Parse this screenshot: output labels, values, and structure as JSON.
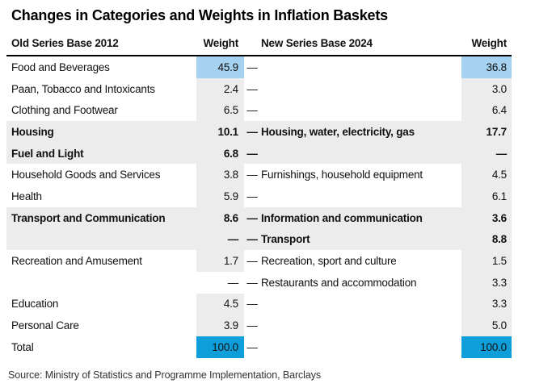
{
  "title": "Changes in Categories and Weights in Inflation Baskets",
  "header": {
    "old_series": "Old Series Base 2012",
    "old_weight": "Weight",
    "new_series": "New Series Base 2024",
    "new_weight": "Weight"
  },
  "colors": {
    "cell_gray": "#ececec",
    "row_gray": "#ececec",
    "highlight_light_blue": "#a5d2f0",
    "highlight_strong_blue": "#0e9fdb",
    "rule_black": "#000000"
  },
  "separator_glyph": "—",
  "dash_glyph": "—",
  "source": "Source: Ministry of Statistics and Programme Implementation, Barclays",
  "chart_data": {
    "type": "table",
    "title": "Changes in Categories and Weights in Inflation Baskets",
    "columns": [
      "Old Series Base 2012",
      "Weight",
      "New Series Base 2024",
      "Weight"
    ],
    "rows": [
      {
        "old": "Food and Beverages",
        "old_weight": "45.9",
        "sep": "—",
        "new": "",
        "new_weight": "36.8",
        "bold": false,
        "row_bg": "white",
        "ow_bg": "light",
        "nw_bg": "light"
      },
      {
        "old": "Paan, Tobacco and Intoxicants",
        "old_weight": "2.4",
        "sep": "—",
        "new": "",
        "new_weight": "3.0",
        "bold": false,
        "row_bg": "white",
        "ow_bg": "gray",
        "nw_bg": "gray"
      },
      {
        "old": "Clothing and Footwear",
        "old_weight": "6.5",
        "sep": "—",
        "new": "",
        "new_weight": "6.4",
        "bold": false,
        "row_bg": "white",
        "ow_bg": "gray",
        "nw_bg": "gray"
      },
      {
        "old": "Housing",
        "old_weight": "10.1",
        "sep": "—",
        "new": "Housing, water, electricity, gas",
        "new_weight": "17.7",
        "bold": true,
        "row_bg": "gray",
        "ow_bg": "none",
        "nw_bg": "none"
      },
      {
        "old": "Fuel and Light",
        "old_weight": "6.8",
        "sep": "—",
        "new": "",
        "new_weight": "—",
        "bold": true,
        "row_bg": "gray",
        "ow_bg": "none",
        "nw_bg": "none"
      },
      {
        "old": "Household Goods and Services",
        "old_weight": "3.8",
        "sep": "—",
        "new": "Furnishings, household equipment",
        "new_weight": "4.5",
        "bold": false,
        "row_bg": "white",
        "ow_bg": "gray",
        "nw_bg": "gray"
      },
      {
        "old": "Health",
        "old_weight": "5.9",
        "sep": "—",
        "new": "",
        "new_weight": "6.1",
        "bold": false,
        "row_bg": "white",
        "ow_bg": "gray",
        "nw_bg": "gray"
      },
      {
        "old": "Transport and Communication",
        "old_weight": "8.6",
        "sep": "—",
        "new": "Information and communication",
        "new_weight": "3.6",
        "bold": true,
        "row_bg": "gray",
        "ow_bg": "none",
        "nw_bg": "none"
      },
      {
        "old": "",
        "old_weight": "—",
        "sep": "—",
        "new": "Transport",
        "new_weight": "8.8",
        "bold": true,
        "row_bg": "gray",
        "ow_bg": "none",
        "nw_bg": "none"
      },
      {
        "old": "Recreation and Amusement",
        "old_weight": "1.7",
        "sep": "—",
        "new": "Recreation, sport and culture",
        "new_weight": "1.5",
        "bold": false,
        "row_bg": "white",
        "ow_bg": "gray",
        "nw_bg": "gray"
      },
      {
        "old": "",
        "old_weight": "—",
        "sep": "—",
        "new": "Restaurants and accommodation",
        "new_weight": "3.3",
        "bold": false,
        "row_bg": "white",
        "ow_bg": "none",
        "nw_bg": "gray"
      },
      {
        "old": "Education",
        "old_weight": "4.5",
        "sep": "—",
        "new": "",
        "new_weight": "3.3",
        "bold": false,
        "row_bg": "white",
        "ow_bg": "gray",
        "nw_bg": "gray"
      },
      {
        "old": "Personal Care",
        "old_weight": "3.9",
        "sep": "—",
        "new": "",
        "new_weight": "5.0",
        "bold": false,
        "row_bg": "white",
        "ow_bg": "gray",
        "nw_bg": "gray"
      },
      {
        "old": "Total",
        "old_weight": "100.0",
        "sep": "—",
        "new": "",
        "new_weight": "100.0",
        "bold": false,
        "row_bg": "white",
        "ow_bg": "strong",
        "nw_bg": "strong"
      }
    ],
    "source": "Source: Ministry of Statistics and Programme Implementation, Barclays"
  }
}
